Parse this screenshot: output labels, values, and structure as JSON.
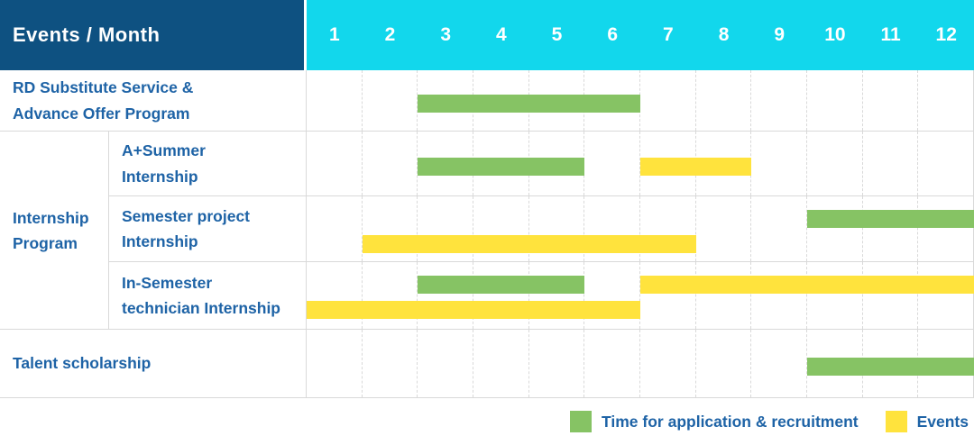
{
  "header": {
    "label": "Events / Month",
    "months": [
      "1",
      "2",
      "3",
      "4",
      "5",
      "6",
      "7",
      "8",
      "9",
      "10",
      "11",
      "12"
    ]
  },
  "colors": {
    "header_bg": "#0e5181",
    "months_bg": "#12d7ec",
    "recruitment_green": "#86c364",
    "events_yellow": "#ffe33d",
    "label_text": "#1e63a6",
    "grid_line": "#d9d9d9"
  },
  "legend": {
    "items": [
      {
        "series": "recruitment",
        "label": "Time for application & recruitment"
      },
      {
        "series": "events",
        "label": "Events"
      }
    ]
  },
  "chart_data": {
    "type": "gantt",
    "title": "Events / Month",
    "x_axis": {
      "label": "Month",
      "ticks": [
        1,
        2,
        3,
        4,
        5,
        6,
        7,
        8,
        9,
        10,
        11,
        12
      ],
      "range": [
        1,
        12
      ]
    },
    "series_legend": {
      "recruitment": "Time for application & recruitment",
      "events": "Events"
    },
    "group_label": "Internship Program",
    "rows": [
      {
        "label": "RD Substitute Service & Advance Offer Program",
        "label_lines": [
          "RD Substitute Service &",
          "Advance Offer Program"
        ],
        "group": null,
        "lines": [
          [
            {
              "series": "recruitment",
              "start_month": 3,
              "end_month": 6
            }
          ]
        ]
      },
      {
        "label": "A+Summer Internship",
        "label_lines": [
          "A+Summer",
          "Internship"
        ],
        "group": "Internship Program",
        "lines": [
          [
            {
              "series": "recruitment",
              "start_month": 3,
              "end_month": 5
            },
            {
              "series": "events",
              "start_month": 7,
              "end_month": 8
            }
          ]
        ]
      },
      {
        "label": "Semester project Internship",
        "label_lines": [
          "Semester project",
          "Internship"
        ],
        "group": "Internship Program",
        "lines": [
          [
            {
              "series": "recruitment",
              "start_month": 10,
              "end_month": 12
            }
          ],
          [
            {
              "series": "events",
              "start_month": 2,
              "end_month": 7
            }
          ]
        ]
      },
      {
        "label": "In-Semester technician Internship",
        "label_lines": [
          "In-Semester",
          "technician Internship"
        ],
        "group": "Internship Program",
        "lines": [
          [
            {
              "series": "recruitment",
              "start_month": 3,
              "end_month": 5
            },
            {
              "series": "events",
              "start_month": 7,
              "end_month": 12
            }
          ],
          [
            {
              "series": "events",
              "start_month": 1,
              "end_month": 6
            }
          ]
        ]
      },
      {
        "label": "Talent scholarship",
        "label_lines": [
          "Talent scholarship"
        ],
        "group": null,
        "lines": [
          [
            {
              "series": "recruitment",
              "start_month": 10,
              "end_month": 12
            }
          ]
        ]
      }
    ]
  }
}
